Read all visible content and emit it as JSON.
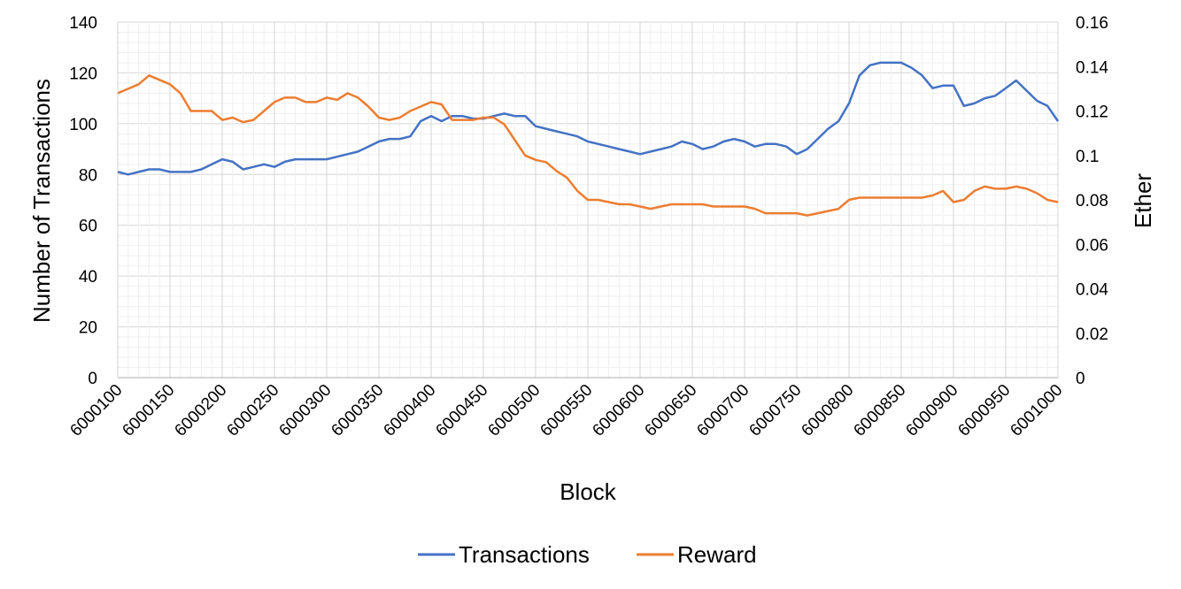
{
  "chart_data": {
    "type": "line",
    "xlabel": "Block",
    "ylabel": "Number of Transactions",
    "y2label": "Ether",
    "xlim": [
      6000100,
      6001000
    ],
    "x_ticks": [
      "6000100",
      "6000150",
      "6000200",
      "6000250",
      "6000300",
      "6000350",
      "6000400",
      "6000450",
      "6000500",
      "6000550",
      "6000600",
      "6000650",
      "6000700",
      "6000750",
      "6000800",
      "6000850",
      "6000900",
      "6000950",
      "6001000"
    ],
    "ylim": [
      0,
      140
    ],
    "y_ticks": [
      "0",
      "20",
      "40",
      "60",
      "80",
      "100",
      "120",
      "140"
    ],
    "y2lim": [
      0,
      0.16
    ],
    "y2_ticks": [
      "0",
      "0.02",
      "0.04",
      "0.06",
      "0.08",
      "0.1",
      "0.12",
      "0.14",
      "0.16"
    ],
    "grid": true,
    "legend_position": "bottom",
    "series": [
      {
        "name": "Transactions",
        "axis": "left",
        "color": "#4472C4",
        "x": [
          6000100,
          6000110,
          6000120,
          6000130,
          6000140,
          6000150,
          6000160,
          6000170,
          6000180,
          6000190,
          6000200,
          6000210,
          6000220,
          6000230,
          6000240,
          6000250,
          6000260,
          6000270,
          6000280,
          6000290,
          6000300,
          6000310,
          6000320,
          6000330,
          6000340,
          6000350,
          6000360,
          6000370,
          6000380,
          6000390,
          6000400,
          6000410,
          6000420,
          6000430,
          6000440,
          6000450,
          6000460,
          6000470,
          6000480,
          6000490,
          6000500,
          6000510,
          6000520,
          6000530,
          6000540,
          6000550,
          6000560,
          6000570,
          6000580,
          6000590,
          6000600,
          6000610,
          6000620,
          6000630,
          6000640,
          6000650,
          6000660,
          6000670,
          6000680,
          6000690,
          6000700,
          6000710,
          6000720,
          6000730,
          6000740,
          6000750,
          6000760,
          6000770,
          6000780,
          6000790,
          6000800,
          6000810,
          6000820,
          6000830,
          6000840,
          6000850,
          6000860,
          6000870,
          6000880,
          6000890,
          6000900,
          6000910,
          6000920,
          6000930,
          6000940,
          6000950,
          6000960,
          6000970,
          6000980,
          6000990,
          6001000
        ],
        "y": [
          81,
          80,
          81,
          82,
          82,
          81,
          81,
          81,
          82,
          84,
          86,
          85,
          82,
          83,
          84,
          83,
          85,
          86,
          86,
          86,
          86,
          87,
          88,
          89,
          91,
          93,
          94,
          94,
          95,
          101,
          103,
          101,
          103,
          103,
          102,
          102,
          103,
          104,
          103,
          103,
          99,
          98,
          97,
          96,
          95,
          93,
          92,
          91,
          90,
          89,
          88,
          89,
          90,
          91,
          93,
          92,
          90,
          91,
          93,
          94,
          93,
          91,
          92,
          92,
          91,
          88,
          90,
          94,
          98,
          101,
          108,
          119,
          123,
          124,
          124,
          124,
          122,
          119,
          114,
          115,
          115,
          107,
          108,
          110,
          111,
          114,
          117,
          113,
          109,
          107,
          101
        ]
      },
      {
        "name": "Reward",
        "axis": "right",
        "color": "#ED7D31",
        "x": [
          6000100,
          6000110,
          6000120,
          6000130,
          6000140,
          6000150,
          6000160,
          6000170,
          6000180,
          6000190,
          6000200,
          6000210,
          6000220,
          6000230,
          6000240,
          6000250,
          6000260,
          6000270,
          6000280,
          6000290,
          6000300,
          6000310,
          6000320,
          6000330,
          6000340,
          6000350,
          6000360,
          6000370,
          6000380,
          6000390,
          6000400,
          6000410,
          6000420,
          6000430,
          6000440,
          6000450,
          6000460,
          6000470,
          6000480,
          6000490,
          6000500,
          6000510,
          6000520,
          6000530,
          6000540,
          6000550,
          6000560,
          6000570,
          6000580,
          6000590,
          6000600,
          6000610,
          6000620,
          6000630,
          6000640,
          6000650,
          6000660,
          6000670,
          6000680,
          6000690,
          6000700,
          6000710,
          6000720,
          6000730,
          6000740,
          6000750,
          6000760,
          6000770,
          6000780,
          6000790,
          6000800,
          6000810,
          6000820,
          6000830,
          6000840,
          6000850,
          6000860,
          6000870,
          6000880,
          6000890,
          6000900,
          6000910,
          6000920,
          6000930,
          6000940,
          6000950,
          6000960,
          6000970,
          6000980,
          6000990,
          6001000
        ],
        "y": [
          0.128,
          0.13,
          0.132,
          0.136,
          0.134,
          0.132,
          0.128,
          0.12,
          0.12,
          0.12,
          0.116,
          0.117,
          0.115,
          0.116,
          0.12,
          0.124,
          0.126,
          0.126,
          0.124,
          0.124,
          0.126,
          0.125,
          0.128,
          0.126,
          0.122,
          0.117,
          0.116,
          0.117,
          0.12,
          0.122,
          0.124,
          0.123,
          0.116,
          0.116,
          0.116,
          0.117,
          0.117,
          0.114,
          0.107,
          0.1,
          0.098,
          0.097,
          0.093,
          0.09,
          0.084,
          0.08,
          0.08,
          0.079,
          0.078,
          0.078,
          0.077,
          0.076,
          0.077,
          0.078,
          0.078,
          0.078,
          0.078,
          0.077,
          0.077,
          0.077,
          0.077,
          0.076,
          0.074,
          0.074,
          0.074,
          0.074,
          0.073,
          0.074,
          0.075,
          0.076,
          0.08,
          0.081,
          0.081,
          0.081,
          0.081,
          0.081,
          0.081,
          0.081,
          0.082,
          0.084,
          0.079,
          0.08,
          0.084,
          0.086,
          0.085,
          0.085,
          0.086,
          0.085,
          0.083,
          0.08,
          0.079
        ]
      }
    ]
  }
}
